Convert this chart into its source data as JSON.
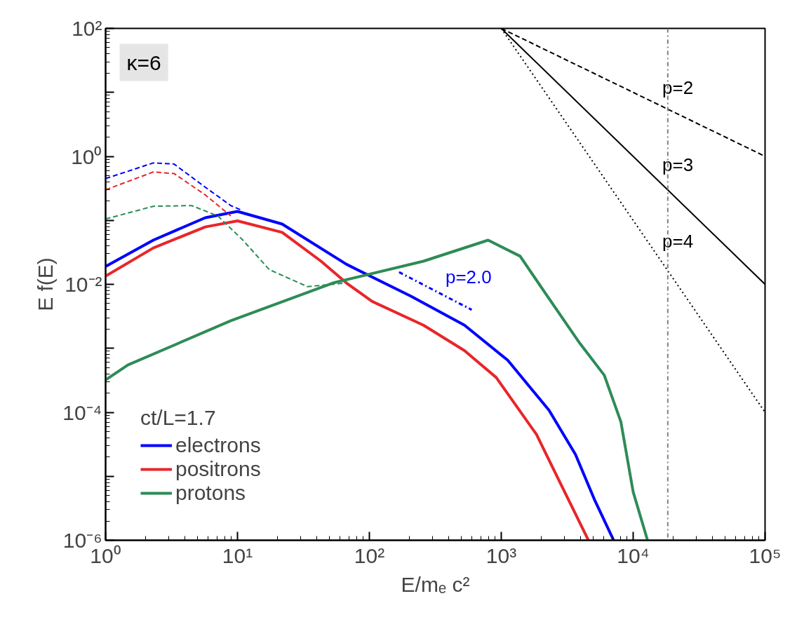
{
  "chart_data": {
    "type": "line",
    "xlabel": "E/mₑ c²",
    "ylabel": "E f(E)",
    "legend_title": "ct/L=1.7",
    "legend": "bottom left",
    "grid": false,
    "log": "xy",
    "xlim": [
      1,
      100000
    ],
    "ylim": [
      1e-06,
      100
    ],
    "xticks": [
      {
        "value": 1,
        "label": "10⁰"
      },
      {
        "value": 10,
        "label": "10¹"
      },
      {
        "value": 100,
        "label": "10²"
      },
      {
        "value": 1000,
        "label": "10³"
      },
      {
        "value": 10000,
        "label": "10⁴"
      },
      {
        "value": 100000,
        "label": "10⁵"
      }
    ],
    "yticks": [
      {
        "value": 1e-06,
        "label": "10⁻⁶"
      },
      {
        "value": 1e-05,
        "label": null
      },
      {
        "value": 0.0001,
        "label": "10⁻⁴"
      },
      {
        "value": 0.001,
        "label": null
      },
      {
        "value": 0.01,
        "label": "10⁻²"
      },
      {
        "value": 0.1,
        "label": null
      },
      {
        "value": 1,
        "label": "10⁰"
      },
      {
        "value": 10,
        "label": null
      },
      {
        "value": 100,
        "label": "10²"
      }
    ],
    "series": [
      {
        "name": "electrons",
        "color": "#0000ff",
        "line_style": "solid",
        "x": [
          1,
          2.3,
          5.7,
          10,
          21.8,
          67,
          207,
          526,
          1120,
          2300,
          3650,
          5070,
          7110
        ],
        "values": [
          0.019,
          0.049,
          0.11,
          0.138,
          0.0875,
          0.0206,
          0.0065,
          0.0023,
          0.00065,
          0.000108,
          2.2e-05,
          4.4e-06,
          1e-06
        ]
      },
      {
        "name": "positrons",
        "color": "#e8262a",
        "line_style": "solid",
        "x": [
          1,
          2.3,
          5.7,
          10,
          21.8,
          43,
          67,
          105,
          257,
          526,
          916,
          1850,
          2840,
          4580
        ],
        "values": [
          0.0134,
          0.037,
          0.079,
          0.098,
          0.065,
          0.023,
          0.0105,
          0.0054,
          0.0023,
          0.00092,
          0.00035,
          4.5e-05,
          7.4e-06,
          1e-06
        ]
      },
      {
        "name": "protons",
        "color": "#2e8b57",
        "line_style": "solid",
        "x": [
          1,
          1.48,
          8.9,
          53,
          257,
          795,
          1390,
          2100,
          3940,
          6040,
          8070,
          10000,
          12850
        ],
        "values": [
          0.00032,
          0.00055,
          0.0027,
          0.0105,
          0.023,
          0.049,
          0.0275,
          0.0079,
          0.0012,
          0.00038,
          7.1e-05,
          5.7e-06,
          1e-06
        ]
      },
      {
        "color": "#0000ff",
        "line_style": "dashed",
        "x": [
          1,
          2.3,
          3.3,
          5.7,
          8.9,
          10.6
        ],
        "values": [
          0.45,
          0.79,
          0.76,
          0.33,
          0.17,
          0.146
        ]
      },
      {
        "color": "#e8262a",
        "line_style": "dashed",
        "x": [
          1,
          2.3,
          3.3,
          5.7,
          8.9
        ],
        "values": [
          0.3,
          0.57,
          0.54,
          0.25,
          0.117
        ]
      },
      {
        "color": "#2e8b57",
        "line_style": "dashed",
        "x": [
          1,
          2.3,
          4.5,
          7.1,
          11,
          17.4,
          34,
          67
        ],
        "values": [
          0.105,
          0.166,
          0.17,
          0.117,
          0.049,
          0.017,
          0.0092,
          0.0105
        ]
      },
      {
        "name": "p=2.0",
        "color": "#0000ff",
        "line_style": "dashdot",
        "x": [
          168,
          597
        ],
        "values": [
          0.0155,
          0.004
        ]
      },
      {
        "name": "p=2",
        "color": "#000000",
        "line_style": "dashed",
        "x": [
          1000,
          100000
        ],
        "values": [
          100,
          1
        ]
      },
      {
        "name": "p=3",
        "color": "#000000",
        "line_style": "solid",
        "x": [
          1000,
          100000
        ],
        "values": [
          100,
          0.01
        ]
      },
      {
        "name": "p=4",
        "color": "#000000",
        "line_style": "dotted",
        "x": [
          1000,
          100000
        ],
        "values": [
          100,
          0.0001
        ]
      }
    ],
    "ref_lines": [
      {
        "axis": "x",
        "value": 18300,
        "color": "#808080",
        "line_style": "dashdot"
      }
    ],
    "annotations": [
      "κ=6"
    ]
  }
}
